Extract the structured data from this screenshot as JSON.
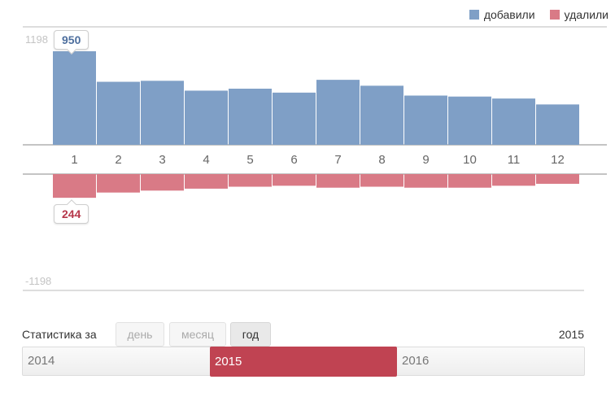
{
  "legend": {
    "added_label": "добавили",
    "removed_label": "удалили",
    "added_color": "#7f9fc6",
    "removed_color": "#d97a86"
  },
  "chart_data": {
    "type": "bar",
    "categories": [
      "1",
      "2",
      "3",
      "4",
      "5",
      "6",
      "7",
      "8",
      "9",
      "10",
      "11",
      "12"
    ],
    "series": [
      {
        "name": "добавили",
        "values": [
          950,
          640,
          650,
          550,
          570,
          530,
          660,
          600,
          500,
          490,
          470,
          410
        ]
      },
      {
        "name": "удалили",
        "values": [
          244,
          190,
          170,
          150,
          130,
          120,
          140,
          130,
          140,
          140,
          120,
          100
        ]
      }
    ],
    "ymax_label": "1198",
    "ymin_label": "-1198",
    "ylim": [
      -1198,
      1198
    ],
    "highlight": {
      "category": "1",
      "added": "950",
      "removed": "244"
    },
    "colors": {
      "added": "#7f9fc6",
      "removed": "#d97a86",
      "added_text": "#4e6f9e",
      "removed_text": "#b6374a"
    }
  },
  "controls": {
    "stat_label": "Статистика за",
    "periods": [
      "день",
      "месяц",
      "год"
    ],
    "active_period": "год",
    "current_year": "2015"
  },
  "years": {
    "items": [
      "2014",
      "2015",
      "2016"
    ],
    "active": "2015",
    "active_color": "#c04352"
  }
}
